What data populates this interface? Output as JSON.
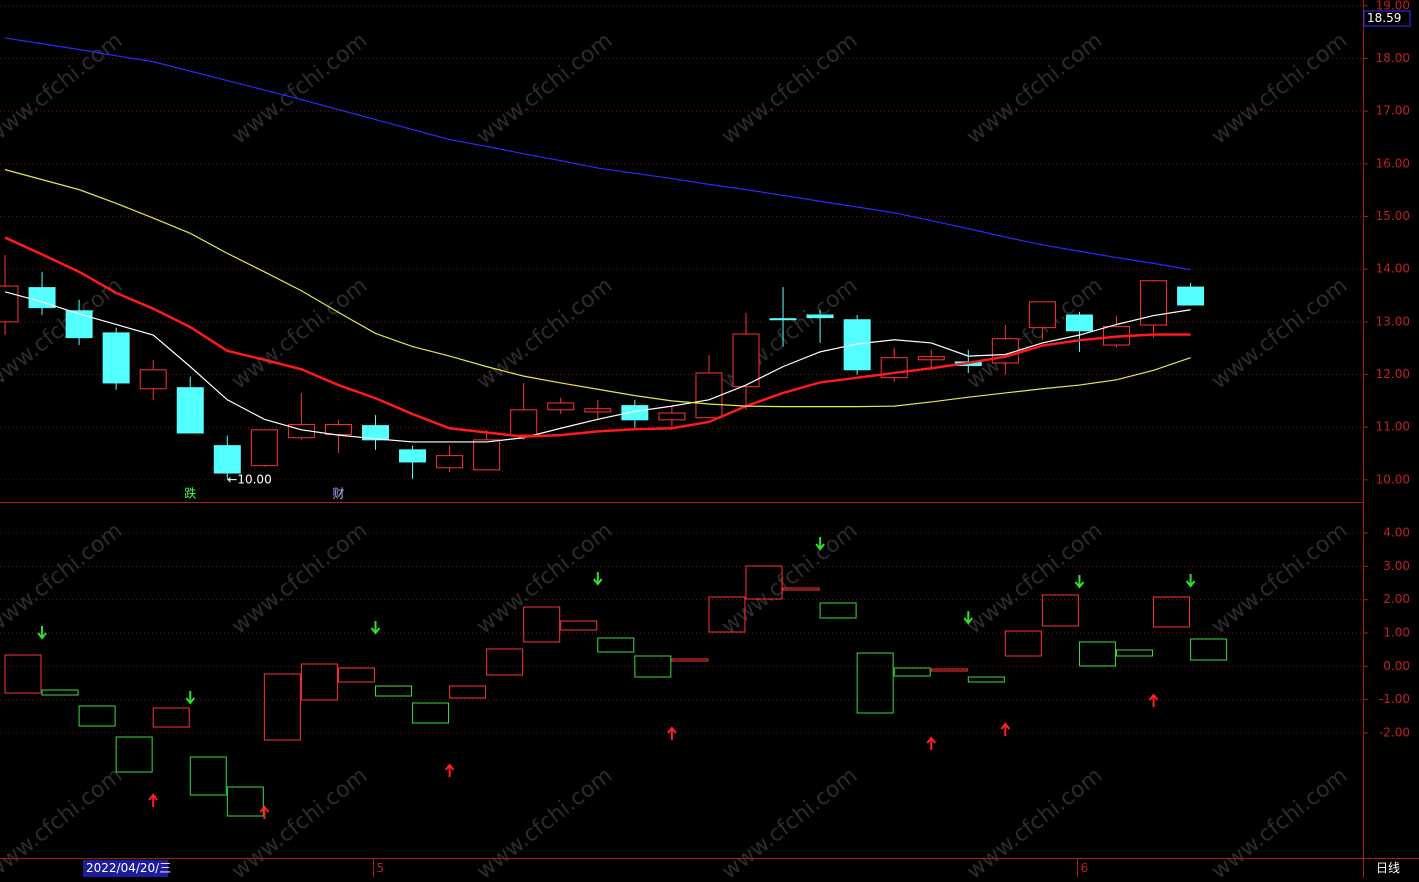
{
  "watermark": "www.cfchi.com",
  "cursor_date": "2022/04/20/三",
  "period": "日线",
  "price_box": 18.59,
  "chart_data": [
    {
      "type": "candlestick",
      "categories": [
        null,
        null,
        null,
        null,
        null,
        null,
        null,
        null,
        null,
        null,
        "5",
        null,
        null,
        null,
        null,
        null,
        null,
        null,
        null,
        null,
        null,
        null,
        null,
        null,
        null,
        null,
        null,
        null,
        null,
        "6",
        null,
        null,
        null
      ],
      "open": [
        13.0,
        13.65,
        13.21,
        12.79,
        11.73,
        11.75,
        10.65,
        10.27,
        10.8,
        10.86,
        11.03,
        10.57,
        10.23,
        10.19,
        10.85,
        11.33,
        11.29,
        11.41,
        11.14,
        11.18,
        11.77,
        13.06,
        13.13,
        13.04,
        11.94,
        12.28,
        12.24,
        12.22,
        12.89,
        13.13,
        12.56,
        12.94,
        13.66
      ],
      "close": [
        13.68,
        13.27,
        12.7,
        11.84,
        12.09,
        10.89,
        10.13,
        10.95,
        11.05,
        11.05,
        10.76,
        10.34,
        10.46,
        10.76,
        11.33,
        11.46,
        11.35,
        11.14,
        11.27,
        12.03,
        12.77,
        13.04,
        13.08,
        12.09,
        12.32,
        12.34,
        12.17,
        12.68,
        13.38,
        12.83,
        12.91,
        13.78,
        13.32
      ],
      "high": [
        14.27,
        13.95,
        13.42,
        12.89,
        12.28,
        11.96,
        10.84,
        10.95,
        11.65,
        11.14,
        11.23,
        10.65,
        10.65,
        10.95,
        11.84,
        11.56,
        11.52,
        11.52,
        11.41,
        12.37,
        13.17,
        13.66,
        13.23,
        13.13,
        12.51,
        12.47,
        12.47,
        12.94,
        13.38,
        13.19,
        13.11,
        13.8,
        13.74
      ],
      "low": [
        12.75,
        13.13,
        12.56,
        11.71,
        11.52,
        10.89,
        10.0,
        10.25,
        10.76,
        10.51,
        10.57,
        10.02,
        10.15,
        10.19,
        10.76,
        11.25,
        11.14,
        10.99,
        10.95,
        11.18,
        11.33,
        12.53,
        12.6,
        12.0,
        11.86,
        12.09,
        12.03,
        12.0,
        12.66,
        12.43,
        12.51,
        12.7,
        13.32
      ],
      "up_color": "#ff3232",
      "down_color": "#54ffff",
      "series": [
        {
          "color": "#ffffff",
          "values": [
            13.57,
            13.38,
            13.15,
            12.95,
            12.75,
            12.15,
            11.52,
            11.15,
            10.95,
            10.85,
            10.78,
            10.72,
            10.72,
            10.72,
            10.8,
            10.98,
            11.15,
            11.3,
            11.4,
            11.52,
            11.8,
            12.15,
            12.43,
            12.58,
            12.66,
            12.6,
            12.35,
            12.38,
            12.6,
            12.75,
            12.95,
            13.12,
            13.23
          ]
        },
        {
          "color": "#ff1a1a",
          "values": [
            14.6,
            14.28,
            13.95,
            13.55,
            13.25,
            12.9,
            12.45,
            12.28,
            12.1,
            11.8,
            11.55,
            11.25,
            10.98,
            10.9,
            10.82,
            10.85,
            10.92,
            10.96,
            10.98,
            11.1,
            11.4,
            11.65,
            11.85,
            11.94,
            12.03,
            12.12,
            12.22,
            12.34,
            12.55,
            12.65,
            12.72,
            12.76,
            12.76
          ]
        },
        {
          "color": "#e6e64a",
          "values": [
            15.89,
            15.7,
            15.51,
            15.25,
            14.97,
            14.68,
            14.3,
            13.95,
            13.59,
            13.18,
            12.78,
            12.53,
            12.35,
            12.15,
            11.97,
            11.84,
            11.72,
            11.6,
            11.5,
            11.44,
            11.4,
            11.39,
            11.39,
            11.39,
            11.4,
            11.48,
            11.57,
            11.65,
            11.73,
            11.8,
            11.9,
            12.08,
            12.32
          ]
        },
        {
          "color": "#2b2bff",
          "values": [
            18.39,
            18.28,
            18.17,
            18.05,
            17.94,
            17.76,
            17.58,
            17.4,
            17.22,
            17.03,
            16.84,
            16.65,
            16.46,
            16.33,
            16.19,
            16.06,
            15.92,
            15.82,
            15.72,
            15.61,
            15.51,
            15.4,
            15.29,
            15.18,
            15.07,
            14.92,
            14.77,
            14.61,
            14.46,
            14.34,
            14.22,
            14.11,
            13.99
          ]
        }
      ],
      "low_annotation": {
        "value": 10,
        "label": "←10.00"
      },
      "events": [
        null,
        null,
        null,
        null,
        null,
        "跌",
        null,
        null,
        null,
        "财",
        null,
        null,
        null,
        null,
        null,
        null,
        null,
        null,
        null,
        null,
        null,
        null,
        null,
        null,
        null,
        null,
        null,
        null,
        null,
        null,
        null,
        null,
        null
      ],
      "ylim": [
        9.58,
        19.11
      ],
      "yticks": [
        {
          "value": 19,
          "label": "19.00"
        },
        {
          "value": 18,
          "label": "18.00"
        },
        {
          "value": 17,
          "label": "17.00"
        },
        {
          "value": 16,
          "label": "16.00"
        },
        {
          "value": 15,
          "label": "15.00"
        },
        {
          "value": 14,
          "label": "14.00"
        },
        {
          "value": 13,
          "label": "13.00"
        },
        {
          "value": 12,
          "label": "12.00"
        },
        {
          "value": 11,
          "label": "11.00"
        },
        {
          "value": 10,
          "label": "10.00"
        }
      ],
      "grid": true
    },
    {
      "type": "box-indicator",
      "open": [
        -0.8,
        -0.71,
        -1.19,
        -2.12,
        -1.82,
        -2.72,
        -3.62,
        -2.21,
        -1.01,
        -0.47,
        -0.59,
        -1.1,
        -0.95,
        -0.26,
        0.73,
        1.09,
        0.85,
        0.31,
        0.16,
        1.03,
        2.02,
        2.29,
        1.9,
        0.4,
        -0.05,
        -0.14,
        -0.32,
        0.31,
        1.21,
        0.73,
        0.49,
        1.18,
        0.82
      ],
      "close": [
        0.34,
        -0.86,
        -1.79,
        -3.17,
        -1.25,
        -3.86,
        -4.49,
        -0.23,
        0.07,
        -0.05,
        -0.89,
        -1.7,
        -0.59,
        0.52,
        1.78,
        1.36,
        0.43,
        -0.32,
        0.22,
        2.08,
        3.01,
        2.35,
        1.45,
        -1.4,
        -0.29,
        -0.08,
        -0.47,
        1.06,
        2.14,
        0.01,
        0.31,
        2.08,
        0.19
      ],
      "up_color": "#ff3232",
      "down_color": "#3cdc3c",
      "sell_signals": [
        null,
        1.03,
        null,
        null,
        null,
        -0.92,
        null,
        null,
        null,
        null,
        1.18,
        null,
        null,
        null,
        null,
        null,
        2.65,
        null,
        null,
        null,
        null,
        null,
        3.7,
        null,
        null,
        null,
        1.48,
        null,
        null,
        2.56,
        null,
        null,
        2.59
      ],
      "buy_signals": [
        null,
        null,
        null,
        null,
        -4.04,
        null,
        null,
        -4.4,
        null,
        null,
        null,
        null,
        -3.14,
        null,
        null,
        null,
        null,
        null,
        -2.03,
        null,
        null,
        null,
        null,
        null,
        null,
        -2.33,
        null,
        -1.91,
        null,
        null,
        null,
        -1.04,
        null
      ],
      "ylim": [
        -5.75,
        4.9
      ],
      "yticks": [
        {
          "value": 4,
          "label": "4.00"
        },
        {
          "value": 3,
          "label": "3.00"
        },
        {
          "value": 2,
          "label": "2.00"
        },
        {
          "value": 1,
          "label": "1.00"
        },
        {
          "value": 0,
          "label": "0.00"
        },
        {
          "value": -1,
          "label": "-1.00"
        },
        {
          "value": -2,
          "label": "-2.00"
        }
      ],
      "grid": true
    }
  ]
}
